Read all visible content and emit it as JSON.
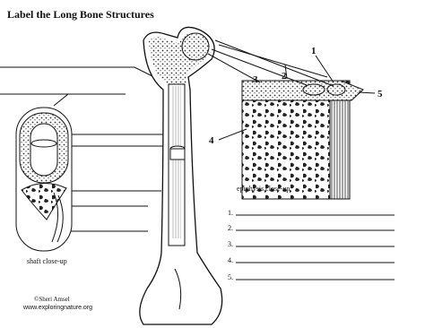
{
  "title": "Label the Long Bone Structures",
  "callouts": [
    "1",
    "2",
    "3",
    "4",
    "5"
  ],
  "captions": {
    "epiphysis": "epiphysis close-up",
    "shaft": "shaft close-up"
  },
  "answer_lines": [
    "1.",
    "2.",
    "3.",
    "4.",
    "5."
  ],
  "credit": {
    "author": "©Sheri Amsel",
    "website": "www.exploringnature.org"
  }
}
